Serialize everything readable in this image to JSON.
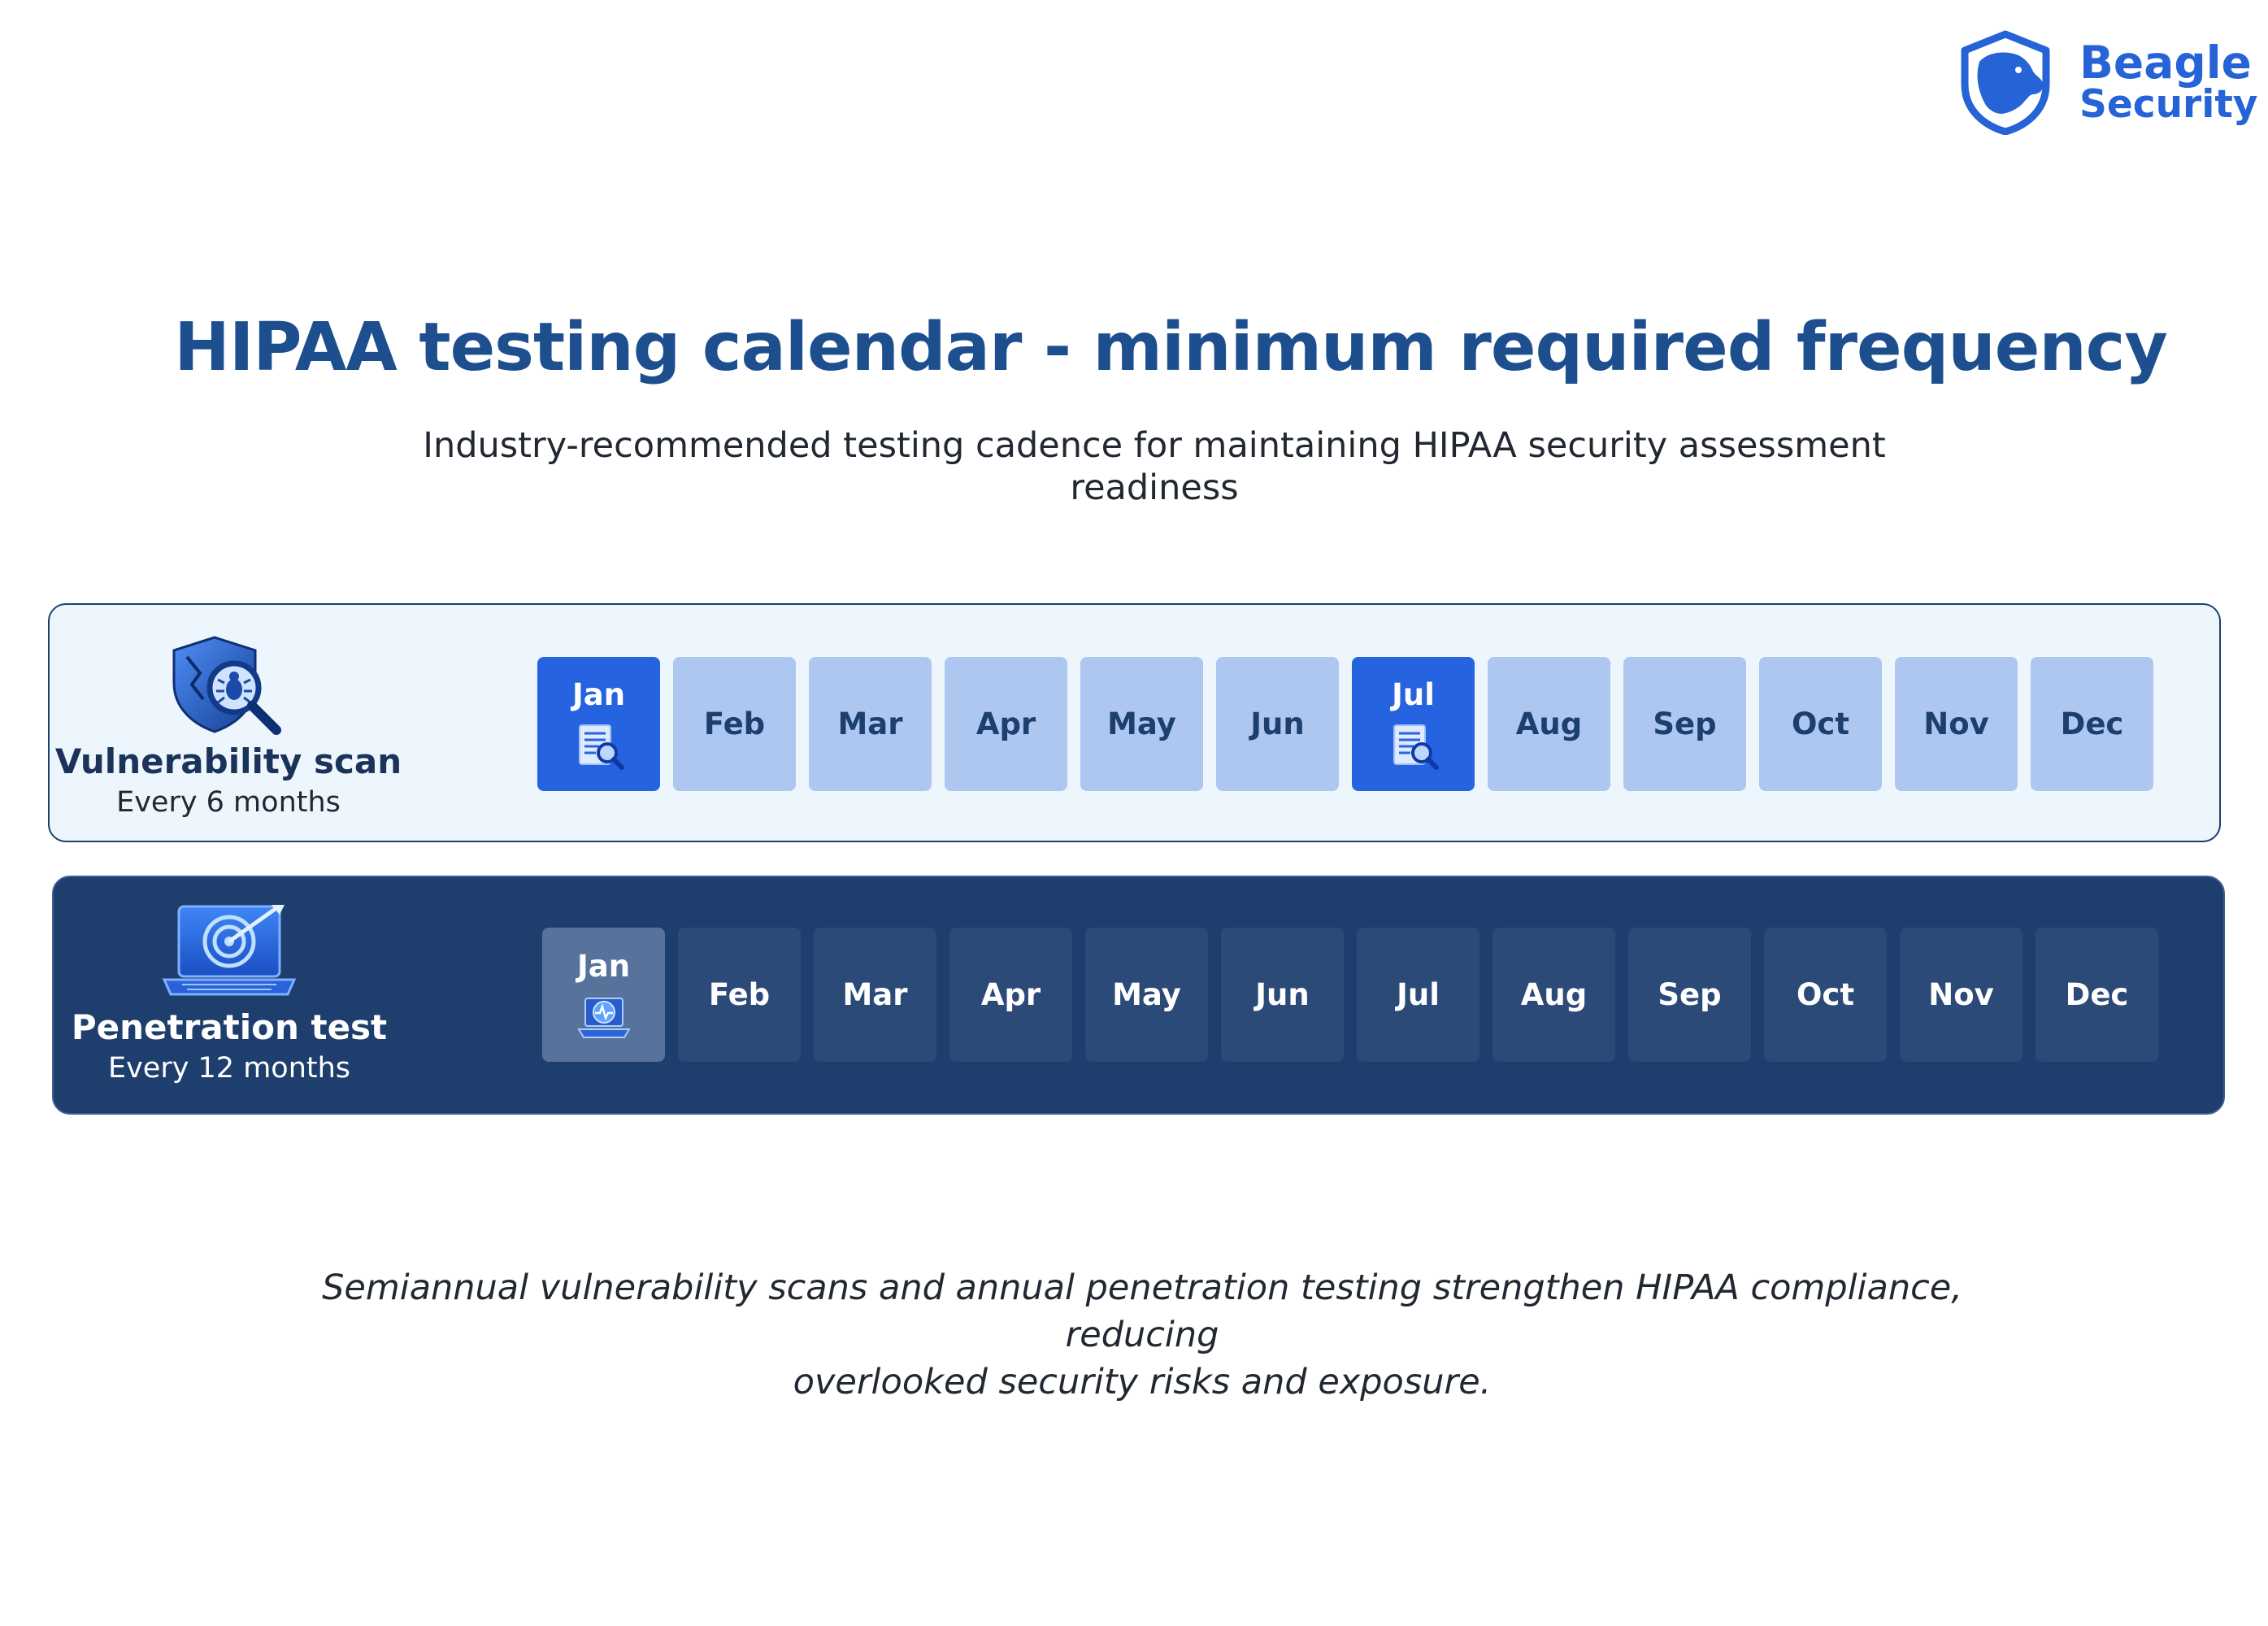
{
  "logo": {
    "line1": "Beagle",
    "line2": "Security",
    "color": "#2563d6"
  },
  "title": "HIPAA testing calendar - minimum required frequency",
  "subtitle_line1": "Industry-recommended testing cadence for maintaining HIPAA security assessment",
  "subtitle_line2": "readiness",
  "rows": [
    {
      "name": "Vulnerability scan",
      "frequency": "Every 6 months",
      "icon": "shield-bug-magnifier-icon",
      "active_color": "#2563e0",
      "inactive_color": "#aec7f0",
      "months": [
        {
          "label": "Jan",
          "active": true
        },
        {
          "label": "Feb",
          "active": false
        },
        {
          "label": "Mar",
          "active": false
        },
        {
          "label": "Apr",
          "active": false
        },
        {
          "label": "May",
          "active": false
        },
        {
          "label": "Jun",
          "active": false
        },
        {
          "label": "Jul",
          "active": true
        },
        {
          "label": "Aug",
          "active": false
        },
        {
          "label": "Sep",
          "active": false
        },
        {
          "label": "Oct",
          "active": false
        },
        {
          "label": "Nov",
          "active": false
        },
        {
          "label": "Dec",
          "active": false
        }
      ]
    },
    {
      "name": "Penetration test",
      "frequency": "Every 12 months",
      "icon": "laptop-target-icon",
      "active_color": "#58739b",
      "inactive_color": "#2c4a78",
      "months": [
        {
          "label": "Jan",
          "active": true
        },
        {
          "label": "Feb",
          "active": false
        },
        {
          "label": "Mar",
          "active": false
        },
        {
          "label": "Apr",
          "active": false
        },
        {
          "label": "May",
          "active": false
        },
        {
          "label": "Jun",
          "active": false
        },
        {
          "label": "Jul",
          "active": false
        },
        {
          "label": "Aug",
          "active": false
        },
        {
          "label": "Sep",
          "active": false
        },
        {
          "label": "Oct",
          "active": false
        },
        {
          "label": "Nov",
          "active": false
        },
        {
          "label": "Dec",
          "active": false
        }
      ]
    }
  ],
  "footer_line1": "Semiannual vulnerability scans and annual penetration testing strengthen HIPAA compliance, reducing",
  "footer_line2": "overlooked security risks and exposure."
}
